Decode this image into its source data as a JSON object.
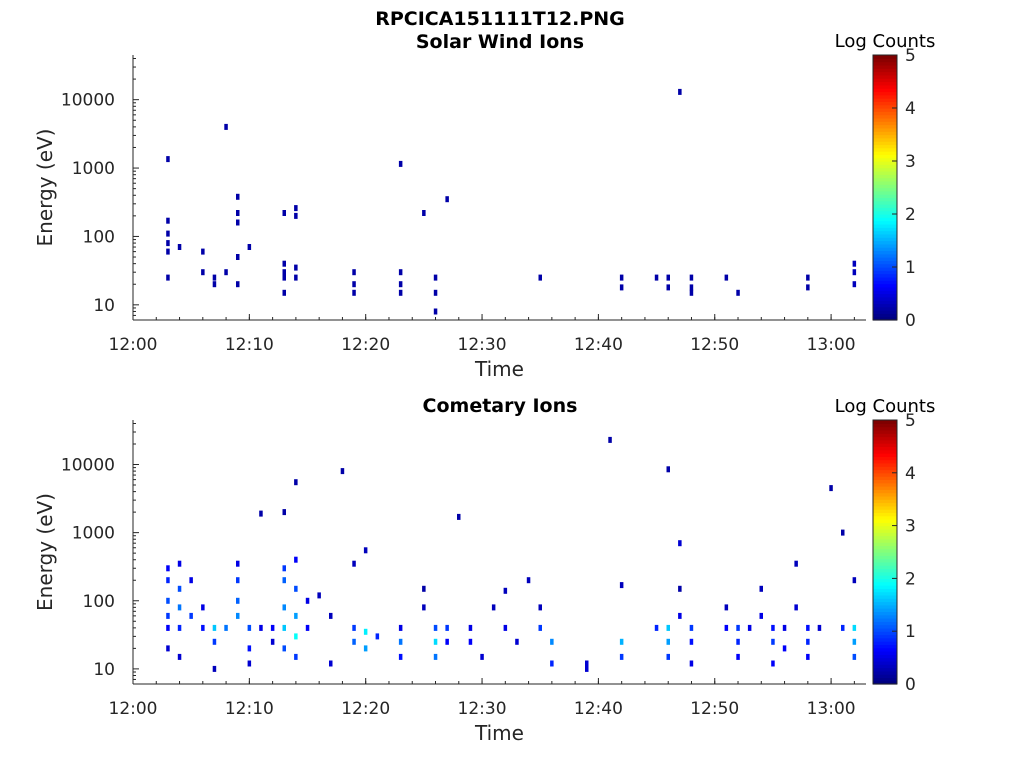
{
  "figure_title": "RPCICA151111T12.PNG",
  "colormap": [
    "#00007f",
    "#0000ff",
    "#007fff",
    "#00ffff",
    "#7fff7f",
    "#ffff00",
    "#ff7f00",
    "#ff0000",
    "#7f0000"
  ],
  "chart_data": [
    {
      "type": "heatmap",
      "title": "Solar Wind Ions",
      "xlabel": "Time",
      "ylabel": "Energy (eV)",
      "y_scale": "log",
      "ylim": [
        6,
        45000
      ],
      "xlim": [
        "12:00",
        "13:03"
      ],
      "x_tick_labels": [
        "12:00",
        "12:10",
        "12:20",
        "12:30",
        "12:40",
        "12:50",
        "13:00"
      ],
      "y_tick_labels": [
        "10",
        "100",
        "1000",
        "10000"
      ],
      "colorbar": {
        "label": "Log Counts",
        "range": [
          0,
          5
        ],
        "tick_labels": [
          "0",
          "1",
          "2",
          "3",
          "4",
          "5"
        ]
      },
      "points": [
        [
          "12:03",
          1350,
          0.2
        ],
        [
          "12:03",
          170,
          0.2
        ],
        [
          "12:03",
          110,
          0.2
        ],
        [
          "12:03",
          80,
          0.2
        ],
        [
          "12:03",
          60,
          0.2
        ],
        [
          "12:03",
          25,
          0.2
        ],
        [
          "12:04",
          70,
          0.2
        ],
        [
          "12:06",
          60,
          0.2
        ],
        [
          "12:06",
          30,
          0.2
        ],
        [
          "12:07",
          25,
          0.2
        ],
        [
          "12:07",
          20,
          0.2
        ],
        [
          "12:08",
          4000,
          0.2
        ],
        [
          "12:08",
          30,
          0.2
        ],
        [
          "12:09",
          380,
          0.2
        ],
        [
          "12:09",
          220,
          0.2
        ],
        [
          "12:09",
          160,
          0.2
        ],
        [
          "12:09",
          50,
          0.2
        ],
        [
          "12:09",
          20,
          0.2
        ],
        [
          "12:10",
          70,
          0.2
        ],
        [
          "12:13",
          220,
          0.2
        ],
        [
          "12:13",
          40,
          0.2
        ],
        [
          "12:13",
          30,
          0.2
        ],
        [
          "12:13",
          25,
          0.2
        ],
        [
          "12:13",
          15,
          0.2
        ],
        [
          "12:14",
          260,
          0.2
        ],
        [
          "12:14",
          200,
          0.2
        ],
        [
          "12:14",
          35,
          0.2
        ],
        [
          "12:14",
          25,
          0.2
        ],
        [
          "12:19",
          30,
          0.2
        ],
        [
          "12:19",
          20,
          0.2
        ],
        [
          "12:19",
          15,
          0.2
        ],
        [
          "12:23",
          1150,
          0.2
        ],
        [
          "12:23",
          30,
          0.2
        ],
        [
          "12:23",
          20,
          0.2
        ],
        [
          "12:23",
          15,
          0.2
        ],
        [
          "12:25",
          220,
          0.2
        ],
        [
          "12:26",
          25,
          0.2
        ],
        [
          "12:26",
          15,
          0.2
        ],
        [
          "12:26",
          8,
          0.2
        ],
        [
          "12:27",
          350,
          0.2
        ],
        [
          "12:35",
          25,
          0.2
        ],
        [
          "12:42",
          25,
          0.2
        ],
        [
          "12:42",
          18,
          0.2
        ],
        [
          "12:45",
          25,
          0.2
        ],
        [
          "12:46",
          25,
          0.2
        ],
        [
          "12:46",
          18,
          0.2
        ],
        [
          "12:47",
          13000,
          0.2
        ],
        [
          "12:48",
          25,
          0.2
        ],
        [
          "12:48",
          18,
          0.2
        ],
        [
          "12:48",
          15,
          0.2
        ],
        [
          "12:51",
          25,
          0.2
        ],
        [
          "12:52",
          15,
          0.2
        ],
        [
          "12:58",
          25,
          0.2
        ],
        [
          "12:58",
          18,
          0.2
        ],
        [
          "13:02",
          40,
          0.3
        ],
        [
          "13:02",
          30,
          0.3
        ],
        [
          "13:02",
          20,
          0.3
        ]
      ]
    },
    {
      "type": "heatmap",
      "title": "Cometary Ions",
      "xlabel": "Time",
      "ylabel": "Energy (eV)",
      "y_scale": "log",
      "ylim": [
        6,
        45000
      ],
      "xlim": [
        "12:00",
        "13:03"
      ],
      "x_tick_labels": [
        "12:00",
        "12:10",
        "12:20",
        "12:30",
        "12:40",
        "12:50",
        "13:00"
      ],
      "y_tick_labels": [
        "10",
        "100",
        "1000",
        "10000"
      ],
      "colorbar": {
        "label": "Log Counts",
        "range": [
          0,
          5
        ],
        "tick_labels": [
          "0",
          "1",
          "2",
          "3",
          "4",
          "5"
        ]
      },
      "points": [
        [
          "12:03",
          300,
          0.6
        ],
        [
          "12:03",
          200,
          0.8
        ],
        [
          "12:03",
          100,
          1.0
        ],
        [
          "12:03",
          60,
          0.9
        ],
        [
          "12:03",
          40,
          0.6
        ],
        [
          "12:03",
          20,
          0.4
        ],
        [
          "12:04",
          350,
          0.5
        ],
        [
          "12:04",
          150,
          1.0
        ],
        [
          "12:04",
          80,
          1.2
        ],
        [
          "12:04",
          40,
          0.8
        ],
        [
          "12:04",
          15,
          0.4
        ],
        [
          "12:05",
          200,
          0.5
        ],
        [
          "12:05",
          60,
          0.9
        ],
        [
          "12:06",
          80,
          0.5
        ],
        [
          "12:06",
          40,
          0.7
        ],
        [
          "12:07",
          40,
          1.6
        ],
        [
          "12:07",
          25,
          0.9
        ],
        [
          "12:07",
          10,
          0.3
        ],
        [
          "12:08",
          40,
          1.2
        ],
        [
          "12:09",
          350,
          0.5
        ],
        [
          "12:09",
          200,
          0.9
        ],
        [
          "12:09",
          100,
          1.1
        ],
        [
          "12:09",
          60,
          1.3
        ],
        [
          "12:10",
          40,
          1.0
        ],
        [
          "12:10",
          20,
          0.7
        ],
        [
          "12:10",
          12,
          0.4
        ],
        [
          "12:11",
          1900,
          0.2
        ],
        [
          "12:11",
          40,
          0.5
        ],
        [
          "12:12",
          40,
          0.6
        ],
        [
          "12:12",
          25,
          0.4
        ],
        [
          "12:13",
          2000,
          0.2
        ],
        [
          "12:13",
          300,
          0.9
        ],
        [
          "12:13",
          200,
          1.1
        ],
        [
          "12:13",
          80,
          1.3
        ],
        [
          "12:13",
          40,
          1.6
        ],
        [
          "12:13",
          20,
          1.0
        ],
        [
          "12:14",
          5500,
          0.2
        ],
        [
          "12:14",
          400,
          0.6
        ],
        [
          "12:14",
          150,
          1.0
        ],
        [
          "12:14",
          60,
          1.4
        ],
        [
          "12:14",
          30,
          1.9
        ],
        [
          "12:14",
          15,
          0.9
        ],
        [
          "12:15",
          100,
          0.5
        ],
        [
          "12:15",
          40,
          0.6
        ],
        [
          "12:16",
          120,
          0.3
        ],
        [
          "12:17",
          60,
          0.3
        ],
        [
          "12:17",
          12,
          0.4
        ],
        [
          "12:18",
          8000,
          0.2
        ],
        [
          "12:19",
          350,
          0.3
        ],
        [
          "12:19",
          40,
          0.9
        ],
        [
          "12:19",
          25,
          1.1
        ],
        [
          "12:20",
          550,
          0.3
        ],
        [
          "12:20",
          35,
          1.8
        ],
        [
          "12:20",
          20,
          1.4
        ],
        [
          "12:21",
          30,
          0.8
        ],
        [
          "12:23",
          40,
          0.5
        ],
        [
          "12:23",
          25,
          1.2
        ],
        [
          "12:23",
          15,
          0.7
        ],
        [
          "12:25",
          150,
          0.2
        ],
        [
          "12:25",
          80,
          0.3
        ],
        [
          "12:26",
          40,
          1.0
        ],
        [
          "12:26",
          25,
          1.7
        ],
        [
          "12:26",
          15,
          1.2
        ],
        [
          "12:27",
          40,
          0.9
        ],
        [
          "12:27",
          25,
          0.6
        ],
        [
          "12:28",
          1700,
          0.2
        ],
        [
          "12:29",
          40,
          0.5
        ],
        [
          "12:29",
          25,
          0.6
        ],
        [
          "12:30",
          15,
          0.4
        ],
        [
          "12:31",
          80,
          0.3
        ],
        [
          "12:32",
          140,
          0.3
        ],
        [
          "12:32",
          40,
          0.5
        ],
        [
          "12:33",
          25,
          0.4
        ],
        [
          "12:34",
          200,
          0.3
        ],
        [
          "12:35",
          80,
          0.3
        ],
        [
          "12:35",
          40,
          0.9
        ],
        [
          "12:36",
          25,
          1.3
        ],
        [
          "12:36",
          12,
          0.8
        ],
        [
          "12:39",
          12,
          0.4
        ],
        [
          "12:39",
          10,
          0.4
        ],
        [
          "12:41",
          23000,
          0.2
        ],
        [
          "12:42",
          170,
          0.3
        ],
        [
          "12:42",
          25,
          1.5
        ],
        [
          "12:42",
          15,
          0.9
        ],
        [
          "12:45",
          40,
          0.8
        ],
        [
          "12:46",
          8500,
          0.2
        ],
        [
          "12:46",
          40,
          1.6
        ],
        [
          "12:46",
          25,
          1.4
        ],
        [
          "12:46",
          15,
          0.9
        ],
        [
          "12:47",
          700,
          0.4
        ],
        [
          "12:47",
          150,
          0.2
        ],
        [
          "12:47",
          60,
          0.5
        ],
        [
          "12:48",
          40,
          0.9
        ],
        [
          "12:48",
          25,
          0.7
        ],
        [
          "12:48",
          12,
          0.5
        ],
        [
          "12:51",
          80,
          0.3
        ],
        [
          "12:51",
          40,
          0.6
        ],
        [
          "12:52",
          40,
          0.9
        ],
        [
          "12:52",
          25,
          0.8
        ],
        [
          "12:52",
          15,
          0.6
        ],
        [
          "12:53",
          40,
          0.5
        ],
        [
          "12:54",
          150,
          0.3
        ],
        [
          "12:54",
          60,
          0.5
        ],
        [
          "12:55",
          40,
          0.7
        ],
        [
          "12:55",
          25,
          0.9
        ],
        [
          "12:55",
          12,
          0.6
        ],
        [
          "12:56",
          40,
          0.5
        ],
        [
          "12:56",
          20,
          0.6
        ],
        [
          "12:57",
          350,
          0.3
        ],
        [
          "12:57",
          80,
          0.4
        ],
        [
          "12:58",
          40,
          0.7
        ],
        [
          "12:58",
          25,
          0.8
        ],
        [
          "12:58",
          15,
          0.6
        ],
        [
          "12:59",
          40,
          0.4
        ],
        [
          "13:00",
          4500,
          0.2
        ],
        [
          "13:01",
          1000,
          0.2
        ],
        [
          "13:01",
          40,
          0.8
        ],
        [
          "13:02",
          40,
          1.7
        ],
        [
          "13:02",
          25,
          1.4
        ],
        [
          "13:02",
          15,
          1.0
        ],
        [
          "13:02",
          200,
          0.3
        ]
      ]
    }
  ]
}
